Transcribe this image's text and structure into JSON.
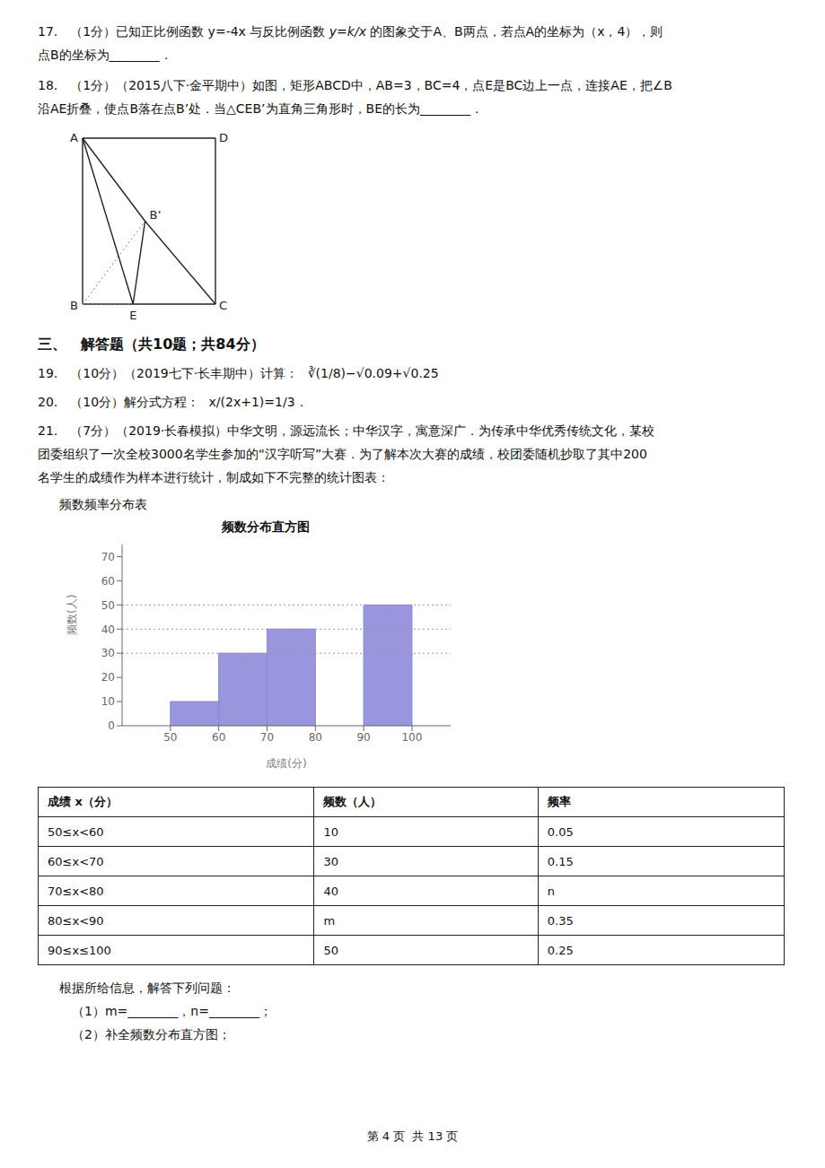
{
  "chart_data": {
    "type": "histogram",
    "title": "频数分布直方图",
    "x_label": "成绩(分)",
    "y_label": "频数(人)",
    "bins": [
      50,
      60,
      70,
      80,
      90,
      100
    ],
    "values": [
      10,
      30,
      40,
      null,
      50
    ],
    "hlines": [
      30,
      40,
      50
    ],
    "color": "#8884d8",
    "xlim": [
      40,
      108
    ],
    "ylim": [
      0,
      75
    ],
    "xticks": [
      50,
      60,
      70,
      80,
      90,
      100
    ],
    "yticks": [
      0,
      10,
      20,
      30,
      40,
      50,
      60,
      70
    ],
    "grid": false,
    "table": {
      "headers": [
        "成绩 x（分）",
        "频数（人）",
        "频率"
      ],
      "rows": [
        [
          "50≤x<60",
          "10",
          "0.05"
        ],
        [
          "60≤x<70",
          "30",
          "0.15"
        ],
        [
          "70≤x<80",
          "40",
          "n"
        ],
        [
          "80≤x<90",
          "m",
          "0.35"
        ],
        [
          "90≤x≤100",
          "50",
          "0.25"
        ]
      ]
    },
    "annotations": [
      "17.　（1分）已知正比例函数 y=-4x 与反比例函数",
      "y=k/x",
      "的图象交于A、B两点，若点A的坐标为（x，4），则",
      "点B的坐标为________．",
      "18.　（1分）（2015八下·金平期中）如图，矩形ABCD中，AB=3，BC=4，点E是BC边上一点，连接AE，把∠B",
      "沿AE折叠，使点B落在点B’处．当△CEB’为直角三角形时，BE的长为________．",
      "A",
      "D",
      "B",
      "E",
      "C",
      "B’",
      "三、　解答题（共10题；共84分）",
      "19.　（10分）（2019七下·长丰期中）计算：",
      "∛(1/8)−√0.09+√0.25",
      "20.　（10分）解分式方程：",
      "x/(2x+1)=1/3",
      "．",
      "21.　（7分）（2019·长春模拟）中华文明，源远流长；中华汉字，寓意深广．为传承中华优秀传统文化，某校",
      "团委组织了一次全校3000名学生参加的“汉字听写”大赛．为了解本次大赛的成绩，校团委随机抄取了其中200",
      "名学生的成绩作为样本进行统计，制成如下不完整的统计图表：",
      "频数频率分布表",
      "根据所给信息，解答下列问题：",
      "（1）m=________，n=________；",
      "（2）补全频数分布直方图；",
      "第 4 页  共 13 页"
    ]
  }
}
